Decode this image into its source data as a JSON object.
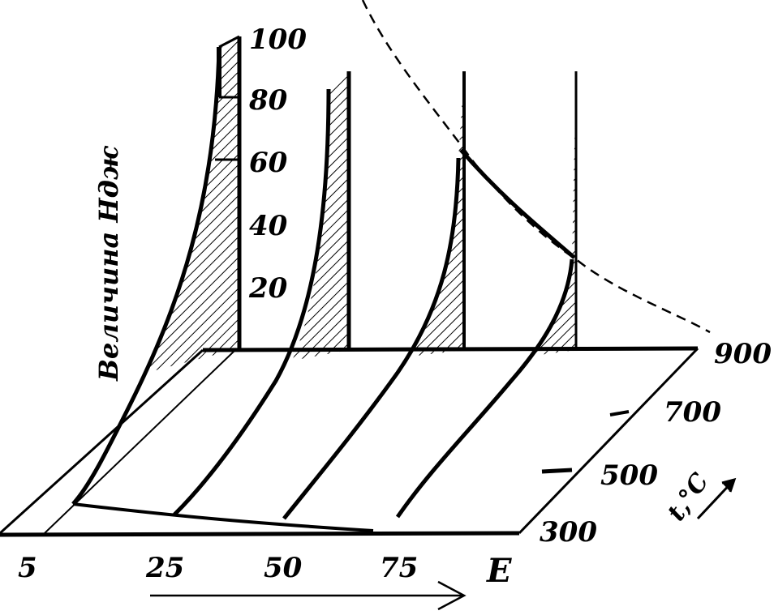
{
  "colors": {
    "ink": "#000000",
    "paper": "#ffffff"
  },
  "axes": {
    "vertical": {
      "title": "Величина Ндж",
      "ticks": [
        "20",
        "40",
        "60",
        "80",
        "100"
      ]
    },
    "horizontal": {
      "ticks": [
        "5",
        "25",
        "50",
        "75"
      ],
      "end_label": "E"
    },
    "depth": {
      "ticks": [
        "300",
        "500",
        "700",
        "900"
      ],
      "title": "t,°C"
    }
  }
}
